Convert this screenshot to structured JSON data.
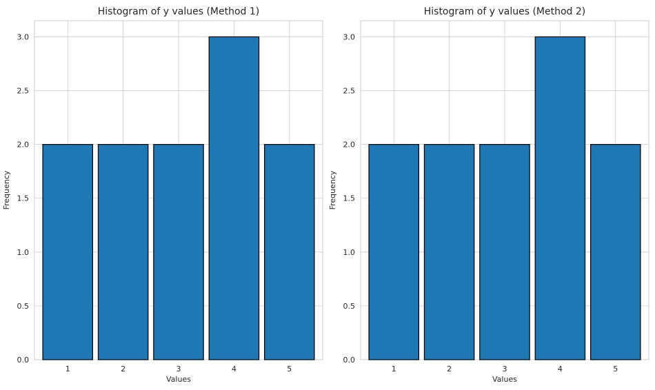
{
  "chart_data": [
    {
      "type": "bar",
      "title": "Histogram of y values (Method 1)",
      "xlabel": "Values",
      "ylabel": "Frequency",
      "categories": [
        "1",
        "2",
        "3",
        "4",
        "5"
      ],
      "values": [
        2,
        2,
        2,
        3,
        2
      ],
      "xlim": [
        0.4,
        5.6
      ],
      "ylim": [
        0,
        3.15
      ],
      "yticks": [
        "0.0",
        "0.5",
        "1.0",
        "1.5",
        "2.0",
        "2.5",
        "3.0"
      ],
      "grid": true,
      "bar_color": "#1f77b4",
      "edge_color": "#000000"
    },
    {
      "type": "bar",
      "title": "Histogram of y values (Method 2)",
      "xlabel": "Values",
      "ylabel": "Frequency",
      "categories": [
        "1",
        "2",
        "3",
        "4",
        "5"
      ],
      "values": [
        2,
        2,
        2,
        3,
        2
      ],
      "xlim": [
        0.4,
        5.6
      ],
      "ylim": [
        0,
        3.15
      ],
      "yticks": [
        "0.0",
        "0.5",
        "1.0",
        "1.5",
        "2.0",
        "2.5",
        "3.0"
      ],
      "grid": true,
      "bar_color": "#1f77b4",
      "edge_color": "#000000"
    }
  ]
}
